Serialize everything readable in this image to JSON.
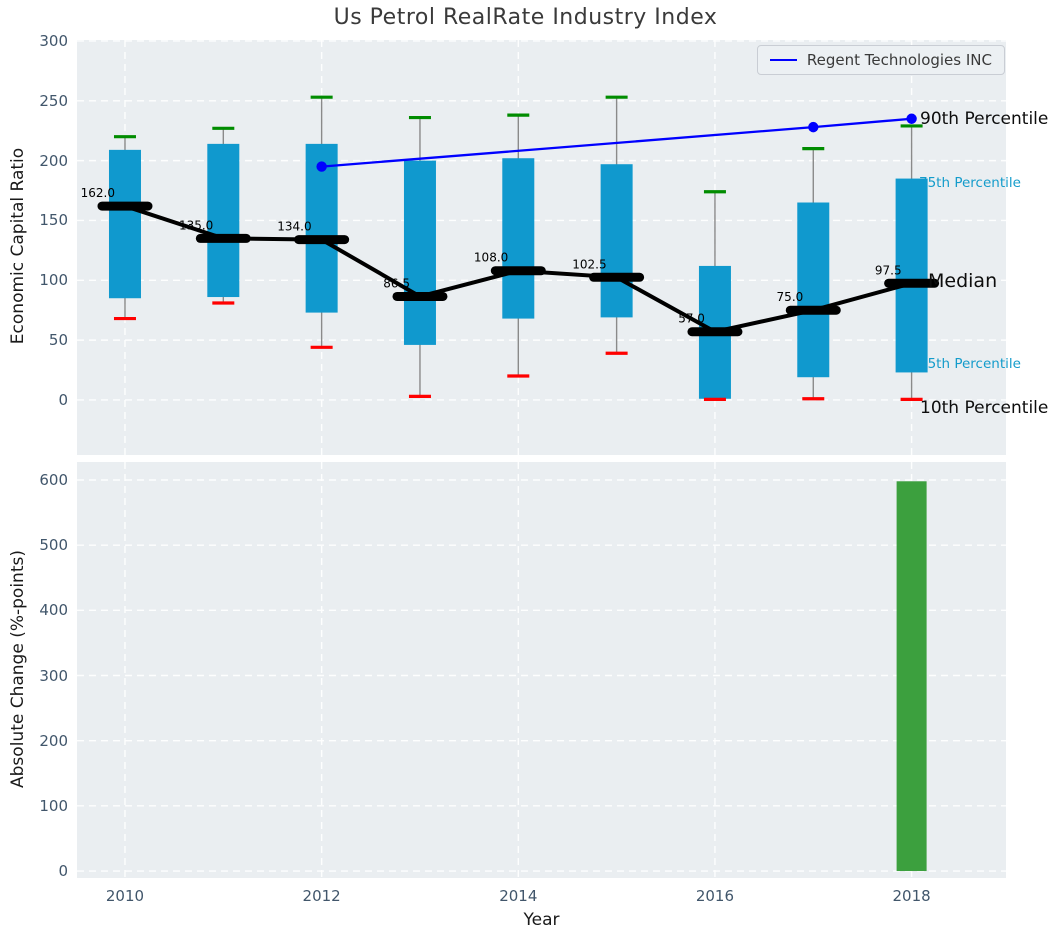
{
  "title": "Us Petrol RealRate Industry Index",
  "legend": {
    "label": "Regent Technologies INC"
  },
  "colors": {
    "box": "#1099ce",
    "cap_high": "#008c00",
    "cap_low": "#ff0000",
    "median": "#000000",
    "company_line": "#0000ff",
    "bar": "#3ca03e",
    "plot_bg": "#eaeef1",
    "grid": "#ffffff",
    "tick_label": "#41566b",
    "whisker": "#8a8a8a",
    "annotation_cyan": "#149ccb"
  },
  "chart_data": [
    {
      "type": "box-whisker-with-line",
      "title": "Us Petrol RealRate Industry Index",
      "xlabel": "",
      "ylabel": "Economic Capital Ratio",
      "ylim": [
        -46,
        300.8
      ],
      "yticks": [
        0,
        50,
        100,
        150,
        200,
        250,
        300
      ],
      "xtick_years": [
        2010,
        2012,
        2014,
        2016,
        2018
      ],
      "grid": "white dashed",
      "legend_position": "upper right",
      "boxes": [
        {
          "year": 2010,
          "p90": 220,
          "p75": 209,
          "median": 162.0,
          "p25": 85,
          "p10": 68,
          "median_label": "162.0"
        },
        {
          "year": 2011,
          "p90": 227,
          "p75": 214,
          "median": 135.0,
          "p25": 86,
          "p10": 81,
          "median_label": "135.0"
        },
        {
          "year": 2012,
          "p90": 253,
          "p75": 214,
          "median": 134.0,
          "p25": 73,
          "p10": 44,
          "median_label": "134.0"
        },
        {
          "year": 2013,
          "p90": 236,
          "p75": 200,
          "median": 86.5,
          "p25": 46,
          "p10": 3,
          "median_label": "86.5"
        },
        {
          "year": 2014,
          "p90": 238,
          "p75": 202,
          "median": 108.0,
          "p25": 68,
          "p10": 20,
          "median_label": "108.0"
        },
        {
          "year": 2015,
          "p90": 253,
          "p75": 197,
          "median": 102.5,
          "p25": 69,
          "p10": 39,
          "median_label": "102.5"
        },
        {
          "year": 2016,
          "p90": 174,
          "p75": 112,
          "median": 57.0,
          "p25": 1,
          "p10": 0.5,
          "median_label": "57.0"
        },
        {
          "year": 2017,
          "p90": 210,
          "p75": 165,
          "median": 75.0,
          "p25": 19,
          "p10": 1,
          "median_label": "75.0"
        },
        {
          "year": 2018,
          "p90": 229,
          "p75": 185,
          "median": 97.5,
          "p25": 23,
          "p10": 0.5,
          "median_label": "97.5"
        }
      ],
      "line_series": {
        "name": "Regent Technologies INC",
        "points": [
          {
            "year": 2012,
            "value": 195
          },
          {
            "year": 2017,
            "value": 228
          },
          {
            "year": 2018,
            "value": 235
          }
        ]
      },
      "annotations": [
        {
          "text": "90th Percentile",
          "at_value": 235,
          "style": "black-large"
        },
        {
          "text": "75th Percentile",
          "at_value": 181,
          "style": "cyan-small"
        },
        {
          "text": "Median",
          "at_value": 99,
          "style": "black-xlarge"
        },
        {
          "text": "25th Percentile",
          "at_value": 30,
          "style": "cyan-small"
        },
        {
          "text": "10th Percentile",
          "at_value": -7,
          "style": "black-large"
        }
      ]
    },
    {
      "type": "bar",
      "xlabel": "Year",
      "ylabel": "Absolute Change (%-points)",
      "ylim": [
        -10.7,
        627.6
      ],
      "yticks": [
        0,
        100,
        200,
        300,
        400,
        500,
        600
      ],
      "xtick_years": [
        2010,
        2012,
        2014,
        2016,
        2018
      ],
      "grid": "white dashed",
      "bars": [
        {
          "year": 2018,
          "value": 598
        }
      ]
    }
  ]
}
